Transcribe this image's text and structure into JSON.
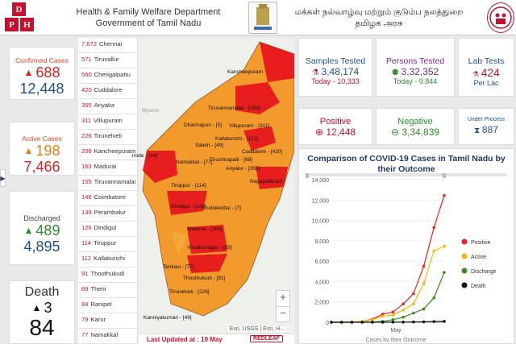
{
  "header": {
    "dept_line1": "Health & Family Welfare Department",
    "dept_line2": "Government of Tamil Nadu",
    "tamil_line1": "மக்கள் நல்வாழ்வு மற்றும் குடும்ப நலத்துறை",
    "tamil_line2": "தமிழக அரசு",
    "logo_letters": [
      "D",
      "P",
      "H"
    ]
  },
  "left_cards": {
    "confirmed": {
      "label": "Confirmed Cases",
      "today": "688",
      "total": "12,448"
    },
    "active": {
      "label": "Active Cases",
      "today": "198",
      "total": "7,466"
    },
    "discharged": {
      "label": "Discharged",
      "today": "489",
      "total": "4,895"
    },
    "death": {
      "label": "Death",
      "today": "3",
      "total": "84"
    }
  },
  "districts": [
    {
      "n": "7,672",
      "name": "Chennai"
    },
    {
      "n": "571",
      "name": "Tiruvallur"
    },
    {
      "n": "560",
      "name": "Chengalpattu"
    },
    {
      "n": "420",
      "name": "Cuddalore"
    },
    {
      "n": "355",
      "name": "Ariyalur"
    },
    {
      "n": "311",
      "name": "Villupuram"
    },
    {
      "n": "226",
      "name": "Tirunelveli"
    },
    {
      "n": "208",
      "name": "Kancheepuram"
    },
    {
      "n": "163",
      "name": "Madurai"
    },
    {
      "n": "155",
      "name": "Tiruvannamalai"
    },
    {
      "n": "146",
      "name": "Coimbatore"
    },
    {
      "n": "139",
      "name": "Perambalur"
    },
    {
      "n": "126",
      "name": "Dindigul"
    },
    {
      "n": "114",
      "name": "Tiruppur"
    },
    {
      "n": "112",
      "name": "Kallakurichi"
    },
    {
      "n": "91",
      "name": "Thoothukudi"
    },
    {
      "n": "89",
      "name": "Theni"
    },
    {
      "n": "84",
      "name": "Ranipet"
    },
    {
      "n": "79",
      "name": "Karur"
    },
    {
      "n": "77",
      "name": "Namakkal"
    }
  ],
  "map": {
    "labels": [
      "Kancheepuram",
      "Tiruvannamalai - [155]",
      "Dharmapuri - [5]",
      "Villupuram - [311]",
      "Kallakurichi - [112]",
      "Salem - [49]",
      "Cuddalore - [420]",
      "irode - [14]",
      "Namakkal - [77]",
      "Ariyalur - [355]",
      "Tiruchirapalli - [68]",
      "Tiruppur - [114]",
      "Nagapattinam",
      "Dindigul - [126]",
      "Pudukkottai - [7]",
      "Madurai - [163]",
      "Virudhunagar - [55]",
      "Tenkasi - [72]",
      "Thoothukudi - [91]",
      "Tirunelveli - [226]",
      "Kanniyakumari - [49]"
    ],
    "mysore_label": "Mysore",
    "attribution": "Esri, USGS | Esri, H...",
    "zoom_in": "+",
    "zoom_out": "−",
    "updated_prefix": "Last Updated at : 19 May",
    "partner_logo": "REDLEAF"
  },
  "stats": {
    "samples": {
      "title": "Samples Tested",
      "value": "3,48,174",
      "today": "Today - 10,333"
    },
    "persons": {
      "title": "Persons Tested",
      "value": "3,32,352",
      "today": "Today - 9,844"
    },
    "lab": {
      "title": "Lab Tests",
      "value": "424",
      "sub": "Per Lac"
    },
    "positive": {
      "title": "Positive",
      "value": "12,448"
    },
    "negative": {
      "title": "Negative",
      "value": "3,34,839"
    },
    "process": {
      "title": "Under Process",
      "value": "887"
    }
  },
  "chart_data": {
    "type": "line",
    "title": "Comparison of COVID-19 Cases in Tamil Nadu by their Outcome",
    "xlabel": "Cases by their Outcome",
    "x_tick_labels": [
      "May"
    ],
    "ylim": [
      0,
      14000
    ],
    "y_ticks": [
      0,
      2000,
      4000,
      6000,
      8000,
      10000,
      12000,
      14000
    ],
    "x": [
      1,
      2,
      3,
      4,
      5,
      6,
      7,
      8,
      9,
      10,
      11,
      12
    ],
    "series": [
      {
        "name": "Positive",
        "color": "#ee2222",
        "values": [
          0,
          0,
          20,
          60,
          300,
          800,
          1000,
          1800,
          2800,
          5500,
          9300,
          12448
        ]
      },
      {
        "name": "Active",
        "color": "#f5b800",
        "values": [
          0,
          0,
          15,
          50,
          250,
          600,
          700,
          1200,
          1800,
          3800,
          7000,
          7466
        ]
      },
      {
        "name": "Discharge",
        "color": "#3c8c1c",
        "values": [
          0,
          0,
          0,
          5,
          20,
          80,
          250,
          500,
          900,
          1300,
          2400,
          4895
        ]
      },
      {
        "name": "Death",
        "color": "#111111",
        "values": [
          0,
          0,
          0,
          0,
          2,
          5,
          10,
          15,
          25,
          40,
          70,
          84
        ]
      }
    ],
    "legend": "right"
  }
}
